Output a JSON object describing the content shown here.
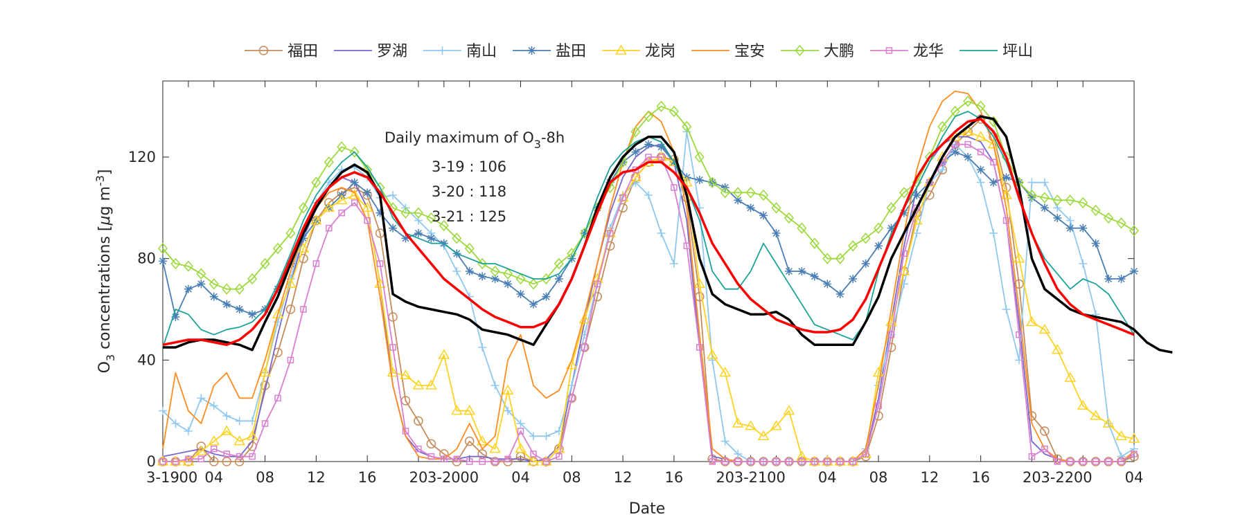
{
  "chart_data": {
    "type": "line",
    "xlabel": "Date",
    "ylabel": "O3 concentrations [μg m-3]",
    "ylabel_parts": {
      "o": "O",
      "sub": "3",
      "rest": " concentrations [",
      "mu": "μ",
      "g": "g m",
      "sup": "-3",
      "close": "]"
    },
    "ylim": [
      0,
      150
    ],
    "xlim": [
      0,
      76
    ],
    "yticks": [
      0,
      40,
      80,
      120
    ],
    "xtick_positions": [
      0,
      2,
      4,
      8,
      12,
      16,
      20,
      22,
      24,
      28,
      32,
      36,
      40,
      44,
      46,
      48,
      52,
      56,
      60,
      64,
      68,
      70,
      72,
      76
    ],
    "xtick_labels": [
      "3-19",
      "00",
      "04",
      "08",
      "12",
      "16",
      "20",
      "3-20",
      "00",
      "04",
      "08",
      "12",
      "16",
      "20",
      "3-21",
      "00",
      "04",
      "08",
      "12",
      "16",
      "20",
      "3-22",
      "00",
      "04"
    ],
    "annotation": {
      "title_main": "Daily maximum of O",
      "title_sub": "3",
      "title_end": "-8h",
      "lines": [
        "3-19 : 106",
        "3-20 : 118",
        "3-21 : 125"
      ]
    },
    "legend_position": "top-center",
    "series": [
      {
        "name": "福田",
        "color": "#c68b5a",
        "marker": "circle",
        "values": [
          0,
          0,
          0,
          6,
          0,
          0,
          0,
          6,
          30,
          43,
          60,
          80,
          95,
          102,
          106,
          108,
          105,
          90,
          57,
          24,
          16,
          7,
          3,
          0,
          8,
          3,
          0,
          0,
          2,
          0,
          0,
          5,
          25,
          45,
          65,
          85,
          100,
          112,
          118,
          120,
          119,
          104,
          65,
          1,
          0,
          0,
          0,
          0,
          0,
          0,
          0,
          0,
          0,
          0,
          0,
          2,
          18,
          45,
          75,
          98,
          105,
          115,
          125,
          130,
          135,
          128,
          108,
          70,
          18,
          12,
          1,
          0,
          0,
          0,
          0,
          0,
          2
        ]
      },
      {
        "name": "罗湖",
        "color": "#7766cc",
        "marker": "none",
        "values": [
          2,
          3,
          4,
          5,
          3,
          2,
          2,
          8,
          28,
          50,
          70,
          88,
          100,
          108,
          112,
          110,
          100,
          70,
          30,
          10,
          4,
          2,
          1,
          1,
          2,
          2,
          1,
          1,
          1,
          0,
          1,
          6,
          30,
          55,
          78,
          98,
          112,
          120,
          124,
          125,
          118,
          95,
          45,
          2,
          1,
          0,
          0,
          0,
          0,
          0,
          0,
          0,
          0,
          0,
          0,
          3,
          25,
          55,
          85,
          108,
          118,
          125,
          128,
          128,
          126,
          118,
          95,
          55,
          8,
          3,
          1,
          0,
          0,
          0,
          0,
          0,
          3
        ]
      },
      {
        "name": "南山",
        "color": "#8ec8f0",
        "marker": "plus",
        "values": [
          20,
          15,
          12,
          25,
          22,
          18,
          16,
          16,
          35,
          55,
          72,
          90,
          102,
          110,
          115,
          116,
          112,
          104,
          105,
          100,
          95,
          90,
          85,
          75,
          65,
          45,
          30,
          20,
          15,
          10,
          10,
          12,
          30,
          50,
          70,
          92,
          105,
          110,
          105,
          90,
          78,
          130,
          100,
          40,
          8,
          3,
          0,
          0,
          0,
          0,
          0,
          0,
          0,
          0,
          0,
          5,
          30,
          50,
          70,
          90,
          110,
          115,
          125,
          120,
          110,
          90,
          60,
          40,
          110,
          110,
          100,
          95,
          78,
          58,
          15,
          2,
          5
        ]
      },
      {
        "name": "盐田",
        "color": "#4a7fb5",
        "marker": "asterisk",
        "values": [
          79,
          57,
          68,
          70,
          65,
          62,
          60,
          58,
          60,
          68,
          78,
          88,
          95,
          100,
          105,
          110,
          106,
          98,
          92,
          88,
          90,
          88,
          86,
          82,
          75,
          73,
          72,
          70,
          66,
          62,
          65,
          72,
          80,
          90,
          100,
          110,
          118,
          122,
          125,
          124,
          118,
          112,
          111,
          110,
          108,
          103,
          100,
          97,
          90,
          75,
          75,
          73,
          70,
          66,
          72,
          78,
          85,
          92,
          98,
          105,
          110,
          118,
          122,
          120,
          115,
          110,
          112,
          110,
          104,
          100,
          96,
          92,
          92,
          86,
          72,
          72,
          75
        ]
      },
      {
        "name": "龙岗",
        "color": "#ffd21f",
        "marker": "triangle",
        "values": [
          0,
          0,
          0,
          4,
          8,
          12,
          8,
          10,
          35,
          58,
          70,
          84,
          95,
          100,
          103,
          105,
          100,
          70,
          35,
          34,
          30,
          30,
          42,
          20,
          20,
          8,
          5,
          28,
          5,
          0,
          0,
          5,
          38,
          56,
          72,
          90,
          104,
          112,
          118,
          120,
          118,
          110,
          70,
          42,
          35,
          15,
          14,
          10,
          14,
          20,
          2,
          0,
          0,
          0,
          0,
          3,
          35,
          55,
          75,
          95,
          110,
          120,
          128,
          130,
          128,
          125,
          105,
          80,
          55,
          52,
          44,
          33,
          22,
          18,
          15,
          10,
          9
        ]
      },
      {
        "name": "宝安",
        "color": "#ff8c1f",
        "marker": "none",
        "values": [
          5,
          35,
          20,
          15,
          30,
          35,
          25,
          25,
          40,
          58,
          75,
          90,
          100,
          106,
          108,
          106,
          95,
          65,
          30,
          10,
          2,
          1,
          1,
          5,
          15,
          5,
          10,
          40,
          50,
          30,
          25,
          28,
          40,
          58,
          78,
          100,
          118,
          132,
          138,
          134,
          122,
          100,
          50,
          5,
          1,
          0,
          0,
          0,
          0,
          0,
          0,
          0,
          0,
          0,
          0,
          5,
          30,
          60,
          90,
          115,
          132,
          142,
          146,
          145,
          138,
          125,
          100,
          60,
          15,
          5,
          1,
          0,
          0,
          0,
          0,
          0,
          4
        ]
      },
      {
        "name": "大鹏",
        "color": "#9bd93a",
        "marker": "diamond",
        "values": [
          84,
          78,
          77,
          74,
          70,
          68,
          68,
          72,
          78,
          84,
          90,
          100,
          110,
          118,
          124,
          122,
          115,
          108,
          100,
          98,
          98,
          96,
          93,
          88,
          84,
          78,
          75,
          74,
          72,
          70,
          72,
          78,
          82,
          90,
          100,
          108,
          118,
          130,
          136,
          140,
          138,
          132,
          120,
          110,
          106,
          106,
          106,
          105,
          100,
          96,
          92,
          86,
          80,
          80,
          85,
          88,
          92,
          100,
          106,
          110,
          120,
          132,
          138,
          142,
          140,
          134,
          120,
          110,
          105,
          104,
          103,
          103,
          102,
          99,
          96,
          94,
          91
        ]
      },
      {
        "name": "龙华",
        "color": "#d97fd1",
        "marker": "square",
        "values": [
          0,
          0,
          1,
          1,
          5,
          3,
          2,
          2,
          15,
          25,
          40,
          60,
          78,
          92,
          98,
          102,
          95,
          78,
          45,
          12,
          5,
          2,
          1,
          1,
          0,
          0,
          0,
          1,
          12,
          3,
          0,
          2,
          25,
          45,
          70,
          90,
          104,
          115,
          120,
          120,
          108,
          85,
          45,
          0,
          0,
          0,
          0,
          0,
          0,
          0,
          0,
          0,
          0,
          0,
          0,
          3,
          22,
          50,
          82,
          100,
          110,
          118,
          125,
          125,
          122,
          118,
          95,
          50,
          2,
          5,
          0,
          0,
          0,
          0,
          0,
          0,
          3
        ]
      },
      {
        "name": "坪山",
        "color": "#1aa39a",
        "marker": "none",
        "values": [
          45,
          60,
          58,
          52,
          50,
          52,
          53,
          55,
          60,
          70,
          82,
          95,
          105,
          112,
          118,
          122,
          116,
          108,
          96,
          90,
          88,
          86,
          86,
          82,
          80,
          78,
          78,
          76,
          74,
          72,
          72,
          74,
          80,
          90,
          104,
          116,
          122,
          126,
          128,
          126,
          118,
          108,
          95,
          75,
          68,
          68,
          75,
          86,
          78,
          70,
          62,
          54,
          52,
          50,
          48,
          55,
          75,
          90,
          100,
          108,
          118,
          128,
          136,
          138,
          135,
          128,
          118,
          104,
          90,
          80,
          74,
          68,
          72,
          70,
          66,
          58,
          50
        ]
      },
      {
        "name": "",
        "color": "#000000",
        "marker": "none",
        "values": [
          45,
          45,
          47,
          48,
          48,
          47,
          46,
          44,
          55,
          65,
          78,
          90,
          100,
          108,
          114,
          117,
          114,
          105,
          66,
          63,
          61,
          60,
          59,
          58,
          56,
          52,
          51,
          50,
          48,
          46,
          54,
          62,
          72,
          85,
          100,
          112,
          120,
          125,
          128,
          128,
          122,
          105,
          80,
          66,
          62,
          60,
          58,
          58,
          59,
          56,
          50,
          46,
          46,
          46,
          46,
          55,
          65,
          80,
          90,
          100,
          110,
          120,
          128,
          132,
          136,
          135,
          128,
          108,
          80,
          68,
          64,
          60,
          58,
          57,
          56,
          55,
          52,
          47,
          44,
          43
        ]
      },
      {
        "name": "",
        "color": "#ff0000",
        "marker": "none",
        "values": [
          46,
          47,
          48,
          48,
          47,
          46,
          48,
          52,
          58,
          68,
          80,
          92,
          102,
          108,
          112,
          114,
          112,
          106,
          98,
          90,
          84,
          78,
          72,
          68,
          64,
          60,
          57,
          55,
          53,
          53,
          55,
          62,
          72,
          85,
          98,
          110,
          114,
          115,
          118,
          118,
          114,
          108,
          98,
          86,
          78,
          70,
          64,
          60,
          56,
          54,
          52,
          51,
          51,
          52,
          56,
          64,
          76,
          88,
          100,
          112,
          120,
          125,
          130,
          134,
          135,
          130,
          120,
          104,
          90,
          78,
          68,
          62,
          58,
          56,
          54,
          52,
          50
        ]
      }
    ]
  }
}
